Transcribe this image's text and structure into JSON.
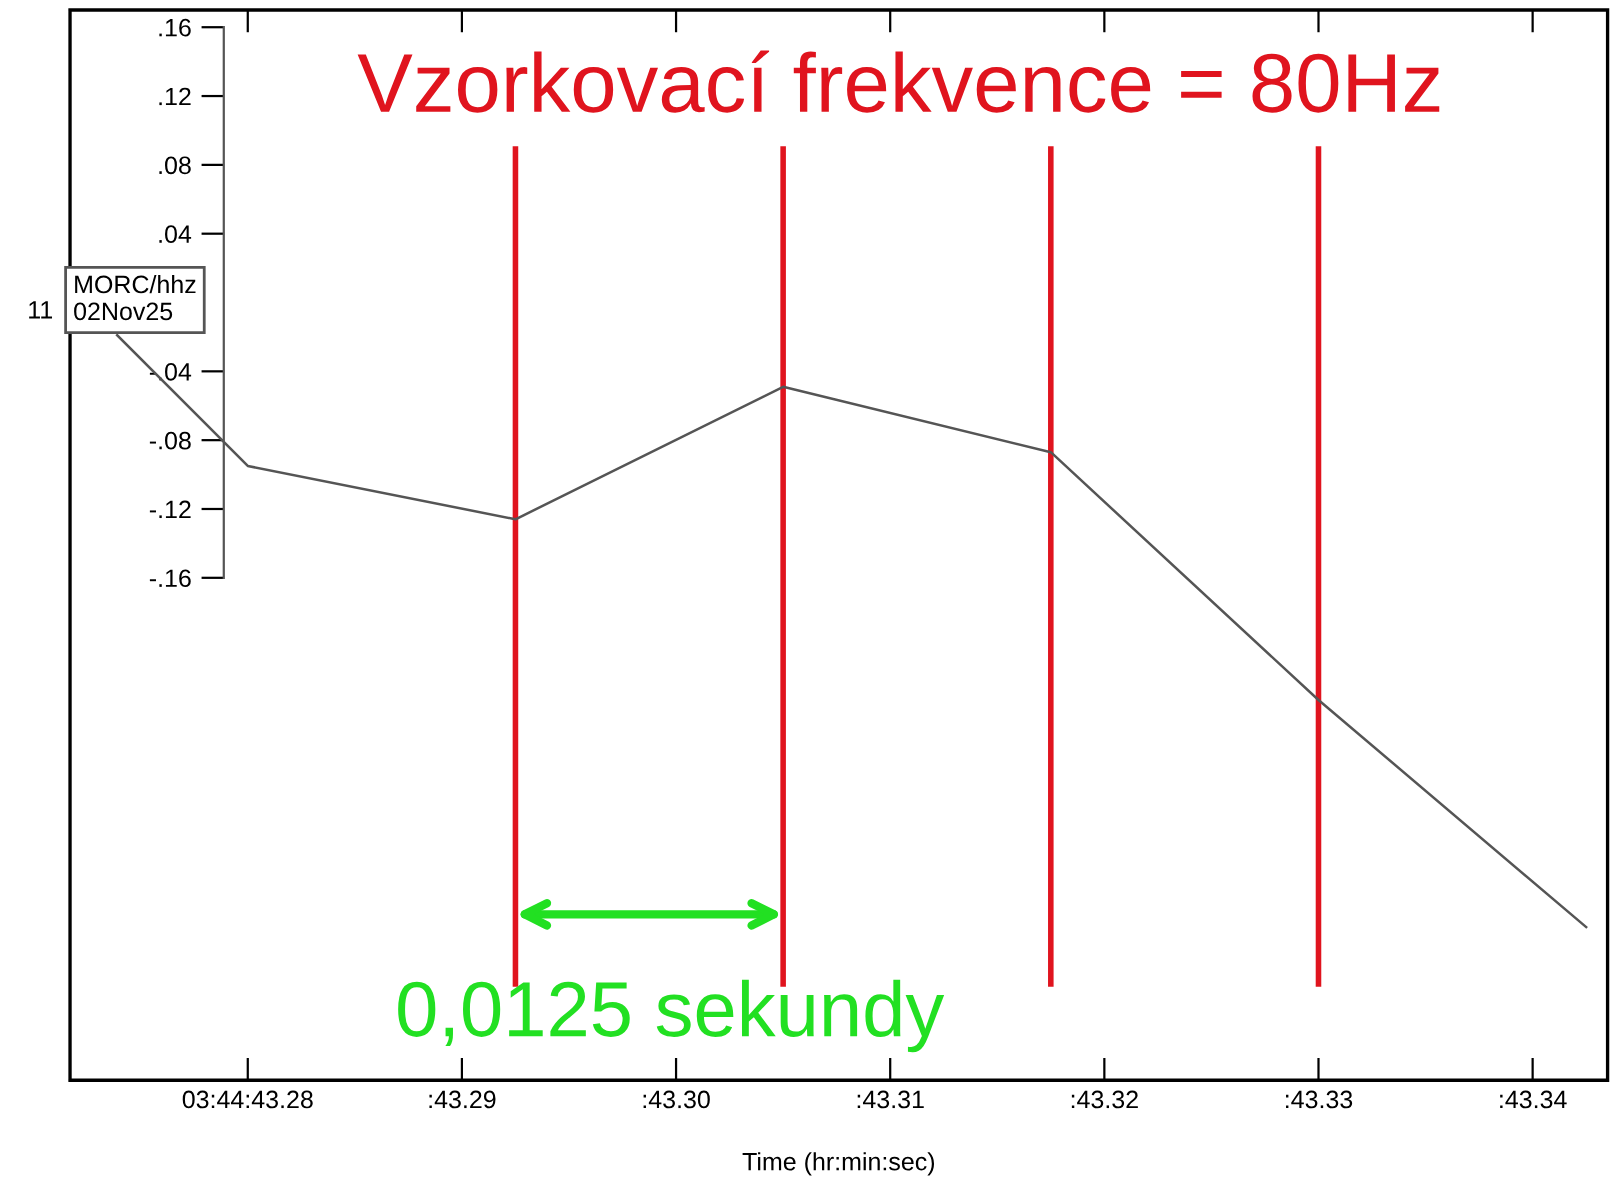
{
  "chart_data": {
    "type": "line",
    "title": "Vzorkovací frekvence = 80Hz",
    "xlabel": "Time (hr:min:sec)",
    "annotations": [
      "11",
      "MORC/hhz\n02Nov25",
      "0,0125 sekundy"
    ],
    "series": [
      {
        "color": "#555555",
        "x": [
          43.2739,
          43.28,
          43.2925,
          43.305,
          43.3175,
          43.33,
          43.3425
        ],
        "values": [
          -0.019,
          -0.095,
          -0.126,
          -0.049,
          -0.087,
          -0.231,
          -0.363
        ]
      }
    ],
    "xlim": [
      43.2717,
      43.3435
    ],
    "ylim": [
      -0.452,
      0.17
    ],
    "xticks": [
      {
        "value": 43.28,
        "label": "03:44:43.28"
      },
      {
        "value": 43.29,
        "label": ":43.29"
      },
      {
        "value": 43.3,
        "label": ":43.30"
      },
      {
        "value": 43.31,
        "label": ":43.31"
      },
      {
        "value": 43.32,
        "label": ":43.32"
      },
      {
        "value": 43.33,
        "label": ":43.33"
      },
      {
        "value": 43.34,
        "label": ":43.34"
      }
    ],
    "yticks": [
      {
        "value": 0.16,
        "label": ".16"
      },
      {
        "value": 0.12,
        "label": ".12"
      },
      {
        "value": 0.08,
        "label": ".08"
      },
      {
        "value": 0.04,
        "label": ".04"
      },
      {
        "value": -0.04,
        "label": "-.04"
      },
      {
        "value": -0.08,
        "label": "-.08"
      },
      {
        "value": -0.12,
        "label": "-.12"
      },
      {
        "value": -0.16,
        "label": "-.16"
      }
    ],
    "ref_lines": [
      {
        "axis": "x",
        "value": 43.2925,
        "color": "#e0141e"
      },
      {
        "axis": "x",
        "value": 43.305,
        "color": "#e0141e"
      },
      {
        "axis": "x",
        "value": 43.3175,
        "color": "#e0141e"
      },
      {
        "axis": "x",
        "value": 43.33,
        "color": "#e0141e"
      }
    ],
    "grid": false
  }
}
